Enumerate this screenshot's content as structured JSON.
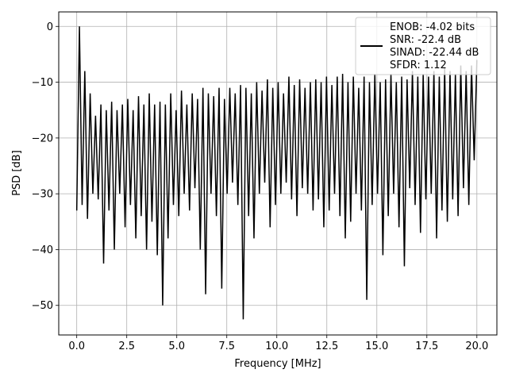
{
  "chart_data": {
    "type": "line",
    "xlabel": "Frequency [MHz]",
    "ylabel": "PSD [dB]",
    "xlim": [
      -0.9,
      21.0
    ],
    "ylim": [
      -55.3,
      2.6
    ],
    "xticks": [
      0.0,
      2.5,
      5.0,
      7.5,
      10.0,
      12.5,
      15.0,
      17.5,
      20.0
    ],
    "xtick_labels": [
      "0.0",
      "2.5",
      "5.0",
      "7.5",
      "10.0",
      "12.5",
      "15.0",
      "17.5",
      "20.0"
    ],
    "yticks": [
      0,
      -10,
      -20,
      -30,
      -40,
      -50
    ],
    "ytick_labels": [
      "0",
      "−10",
      "−20",
      "−30",
      "−40",
      "−50"
    ],
    "grid": true,
    "legend_position": "top-right",
    "series": [
      {
        "name": "ENOB: -4.02 bits\nSNR: -22.4 dB\nSINAD: -22.44 dB\nSFDR: 1.12",
        "color": "#000000",
        "x_start": 0.0,
        "x_end": 20.0,
        "values": [
          -33.0,
          0.0,
          -32.0,
          -8.0,
          -34.5,
          -12.0,
          -30.0,
          -16.0,
          -31.0,
          -14.0,
          -42.5,
          -15.0,
          -33.0,
          -13.5,
          -40.0,
          -15.0,
          -30.0,
          -14.0,
          -36.0,
          -13.0,
          -32.0,
          -15.0,
          -38.0,
          -12.5,
          -34.0,
          -14.0,
          -40.0,
          -12.0,
          -35.0,
          -14.0,
          -41.0,
          -13.5,
          -50.0,
          -14.0,
          -38.0,
          -12.0,
          -32.0,
          -15.0,
          -34.0,
          -11.5,
          -30.0,
          -14.0,
          -33.0,
          -12.0,
          -29.0,
          -13.0,
          -40.0,
          -11.0,
          -48.0,
          -12.0,
          -30.0,
          -12.5,
          -34.0,
          -11.0,
          -47.0,
          -13.0,
          -30.0,
          -11.0,
          -28.0,
          -12.0,
          -32.0,
          -10.5,
          -52.5,
          -11.0,
          -34.0,
          -12.0,
          -38.0,
          -10.0,
          -30.0,
          -11.5,
          -28.0,
          -9.5,
          -36.0,
          -11.0,
          -32.0,
          -10.0,
          -30.0,
          -12.0,
          -28.0,
          -9.0,
          -31.0,
          -10.5,
          -34.0,
          -9.5,
          -29.0,
          -11.0,
          -30.0,
          -10.0,
          -33.0,
          -9.5,
          -31.0,
          -10.0,
          -36.0,
          -9.0,
          -33.0,
          -10.5,
          -30.0,
          -9.0,
          -34.0,
          -8.5,
          -38.0,
          -10.0,
          -35.0,
          -9.0,
          -30.0,
          -11.0,
          -33.0,
          -9.0,
          -49.0,
          -10.0,
          -32.0,
          -8.5,
          -30.0,
          -10.0,
          -41.0,
          -9.5,
          -34.0,
          -8.5,
          -30.0,
          -10.0,
          -36.0,
          -9.0,
          -43.0,
          -9.5,
          -29.0,
          -8.0,
          -32.0,
          -9.0,
          -37.0,
          -8.5,
          -31.0,
          -9.0,
          -30.0,
          -8.0,
          -38.0,
          -9.0,
          -33.0,
          -7.5,
          -35.0,
          -8.0,
          -31.0,
          -8.5,
          -34.0,
          -7.0,
          -29.0,
          -8.0,
          -32.0,
          -7.0,
          -24.0,
          -6.0
        ]
      }
    ]
  }
}
